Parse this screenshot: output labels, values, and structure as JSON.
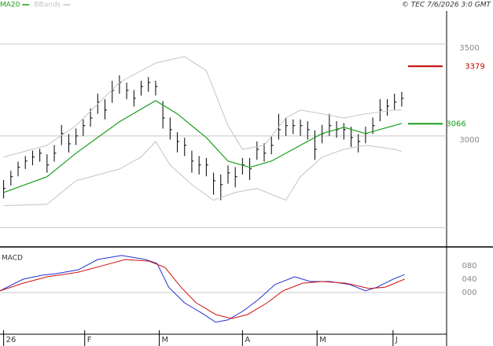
{
  "header": {
    "legend": [
      {
        "name": "MA20",
        "color": "#1a9e1a"
      },
      {
        "name": "BBands",
        "color": "#c4c4c4"
      }
    ],
    "copyright": "© TEC 7/6/2026 3:0 GMT"
  },
  "chart_data": [
    {
      "type": "ohlc",
      "color": "#000000",
      "x": [
        0,
        1,
        2,
        3,
        4,
        5,
        6,
        7,
        8,
        9,
        10,
        11,
        12,
        13,
        14,
        15,
        16,
        17,
        18,
        19,
        20,
        21,
        22,
        23,
        24,
        25,
        26,
        27,
        28,
        29,
        30,
        31,
        32,
        33,
        34,
        35,
        36,
        37,
        38,
        39,
        40,
        41,
        42,
        43,
        44,
        45,
        46,
        47,
        48,
        49,
        50,
        51,
        52,
        53,
        54,
        55
      ],
      "high": [
        2760,
        2810,
        2860,
        2890,
        2920,
        2930,
        2900,
        2950,
        3060,
        3010,
        3040,
        3090,
        3150,
        3230,
        3200,
        3300,
        3330,
        3290,
        3250,
        3300,
        3320,
        3300,
        3190,
        3100,
        3020,
        2990,
        2920,
        2890,
        2880,
        2800,
        2790,
        2840,
        2830,
        2880,
        2880,
        2970,
        2960,
        3000,
        3120,
        3100,
        3090,
        3090,
        3080,
        3030,
        3060,
        3120,
        3080,
        3070,
        3050,
        3010,
        3050,
        3100,
        3200,
        3200,
        3230,
        3240
      ],
      "low": [
        2660,
        2730,
        2780,
        2820,
        2840,
        2860,
        2800,
        2860,
        2950,
        2910,
        2950,
        3000,
        3050,
        3120,
        3090,
        3180,
        3230,
        3200,
        3160,
        3220,
        3240,
        3220,
        3040,
        2980,
        2910,
        2890,
        2800,
        2790,
        2780,
        2680,
        2650,
        2740,
        2720,
        2790,
        2760,
        2870,
        2860,
        2900,
        2980,
        3000,
        3010,
        3000,
        2980,
        2870,
        2960,
        3000,
        2990,
        2980,
        2940,
        2910,
        2960,
        3010,
        3080,
        3110,
        3140,
        3160
      ],
      "close": [
        2714,
        2778,
        2829,
        2863,
        2885,
        2906,
        2842,
        2906,
        3013,
        2957,
        3000,
        3056,
        3098,
        3184,
        3141,
        3248,
        3291,
        3248,
        3205,
        3269,
        3291,
        3269,
        3098,
        3034,
        2970,
        2949,
        2863,
        2842,
        2842,
        2756,
        2735,
        2799,
        2778,
        2842,
        2821,
        2927,
        2906,
        2949,
        3034,
        3056,
        3056,
        3056,
        3034,
        2927,
        3013,
        3056,
        3034,
        3034,
        2991,
        2970,
        3013,
        3056,
        3141,
        3162,
        3184,
        3205
      ],
      "ma": {
        "name": "MA20",
        "color": "#1a9e1a",
        "x": [
          0,
          6,
          10,
          16,
          21,
          24,
          28,
          31,
          34,
          37,
          41,
          44,
          47,
          50,
          55
        ],
        "values": [
          2692,
          2778,
          2906,
          3077,
          3192,
          3120,
          2991,
          2863,
          2829,
          2863,
          2949,
          3013,
          3047,
          3013,
          3068
        ]
      },
      "bands": {
        "name": "BBands",
        "color": "#c4c4c4",
        "upper": {
          "x": [
            0,
            6,
            10,
            16,
            21,
            25,
            28,
            31,
            33,
            36,
            39,
            41,
            44,
            47,
            50,
            54,
            55
          ],
          "values": [
            2885,
            2949,
            3056,
            3291,
            3397,
            3432,
            3355,
            3056,
            2927,
            2949,
            3098,
            3141,
            3120,
            3098,
            3120,
            3141,
            3141
          ]
        },
        "lower": {
          "x": [
            0,
            6,
            10,
            16,
            19,
            21,
            23,
            26,
            29,
            32,
            35,
            39,
            41,
            44,
            47,
            50,
            54,
            55
          ],
          "values": [
            2620,
            2628,
            2756,
            2820,
            2885,
            2970,
            2842,
            2735,
            2650,
            2692,
            2714,
            2650,
            2778,
            2885,
            2927,
            2949,
            2927,
            2915
          ]
        }
      },
      "last_values": [
        {
          "value": 3379,
          "color": "#c00000"
        },
        {
          "value": 3066,
          "color": "#1a9e1a"
        }
      ],
      "xlim": [
        -0.5,
        61.2
      ],
      "ylim": [
        2400,
        3680
      ],
      "yticks": [
        3000,
        3500
      ],
      "grid_lines": [
        2500,
        3000,
        3500
      ]
    },
    {
      "type": "line",
      "title": "MACD",
      "series": [
        {
          "color": "#2030d0",
          "x": [
            -0.5,
            2.7,
            5.4,
            7.1,
            10.3,
            13,
            16.3,
            19.6,
            21.2,
            22.8,
            25,
            27.7,
            29.3,
            31,
            33.2,
            35.3,
            37.5,
            40.2,
            42.4,
            45.1,
            47.8,
            50,
            51.6,
            53.8,
            55.4
          ],
          "values": [
            5,
            40,
            52,
            56,
            68,
            99,
            111,
            99,
            87,
            16,
            -31,
            -66,
            -89,
            -82,
            -54,
            -19,
            24,
            47,
            33,
            33,
            24,
            5,
            16,
            40,
            54
          ]
        },
        {
          "color": "#d01010",
          "x": [
            -0.5,
            2.7,
            6,
            8.2,
            10.3,
            13.6,
            16.8,
            20.1,
            22.3,
            24.5,
            26.6,
            29.3,
            31.5,
            33.7,
            36.4,
            38.6,
            41.3,
            44,
            47.3,
            50.5,
            52.7,
            55.4
          ],
          "values": [
            5,
            28,
            47,
            54,
            61,
            80,
            99,
            94,
            75,
            16,
            -31,
            -66,
            -78,
            -66,
            -31,
            5,
            28,
            33,
            28,
            12,
            16,
            40
          ]
        }
      ],
      "xlim": [
        -0.5,
        61.2
      ],
      "ylim": [
        -125,
        132
      ],
      "yticks": [
        {
          "value": 80,
          "label": "080"
        },
        {
          "value": 40,
          "label": "040"
        },
        {
          "value": 0,
          "label": "000"
        }
      ],
      "grid_lines": [
        0
      ],
      "xticks": [
        {
          "value": 0,
          "label": "26"
        },
        {
          "value": 11.2,
          "label": "F"
        },
        {
          "value": 21.5,
          "label": "M"
        },
        {
          "value": 33,
          "label": "A"
        },
        {
          "value": 43.3,
          "label": "M"
        },
        {
          "value": 53.8,
          "label": "J"
        }
      ]
    }
  ]
}
